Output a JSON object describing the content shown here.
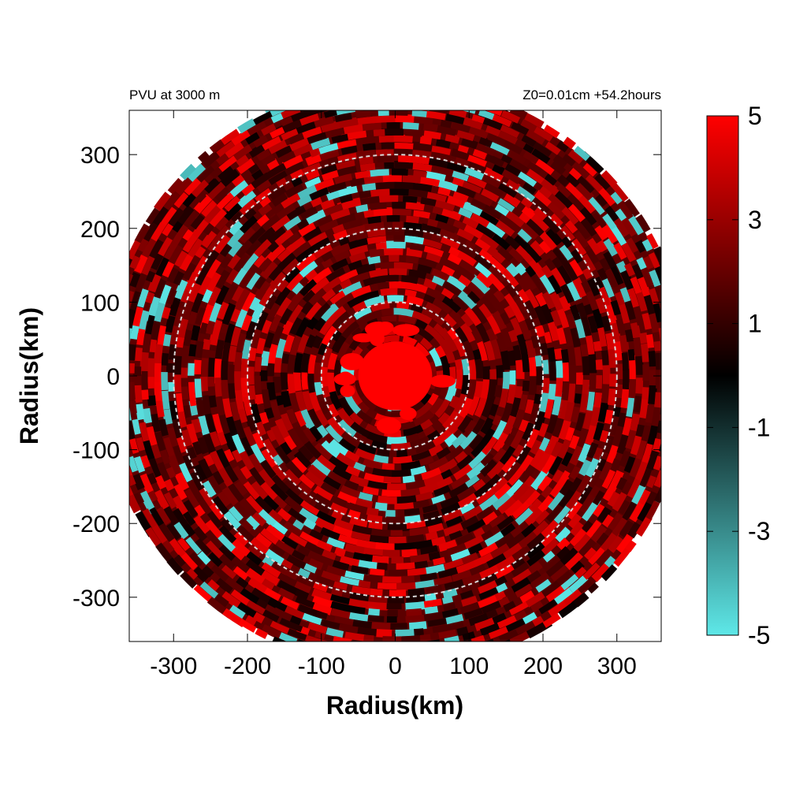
{
  "chart_data": {
    "type": "heatmap",
    "title_left": "PVU at  3000 m",
    "title_right": "Z0=0.01cm  +54.2hours",
    "xlabel": "Radius(km)",
    "ylabel": "Radius(km)",
    "xlim": [
      -360,
      360
    ],
    "ylim": [
      -360,
      360
    ],
    "x_ticks": [
      -300,
      -200,
      -100,
      0,
      100,
      200,
      300
    ],
    "y_ticks": [
      -300,
      -200,
      -100,
      0,
      100,
      200,
      300
    ],
    "x_tick_labels": [
      "-300",
      "-200",
      "-100",
      "0",
      "100",
      "200",
      "300"
    ],
    "y_tick_labels": [
      "-300",
      "-200",
      "-100",
      "0",
      "100",
      "200",
      "300"
    ],
    "reference_circles_km": [
      100,
      200,
      300
    ],
    "domain_radius_km": 390,
    "colorbar": {
      "range": [
        -5,
        5
      ],
      "tick_values": [
        5,
        3,
        1,
        -1,
        -3,
        -5
      ],
      "tick_labels": [
        "5",
        "3",
        "1",
        "-1",
        "-3",
        "-5"
      ],
      "colors": [
        "#5ee8e8",
        "#000000",
        "#ff0000"
      ]
    },
    "field_summary": {
      "core": {
        "radius_km": 50,
        "value": 5
      },
      "background_value": 1.8,
      "negative_patches_value": -4
    }
  }
}
